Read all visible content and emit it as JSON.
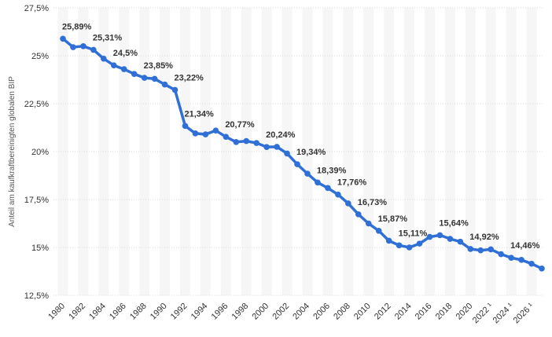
{
  "chart_data": {
    "type": "line",
    "title": "",
    "xlabel": "",
    "ylabel": "Anteil am kaufkraftbereinigten globalen BIP",
    "ylim": [
      12.5,
      27.5
    ],
    "y_ticks": [
      "12,5%",
      "15%",
      "17,5%",
      "20%",
      "22,5%",
      "25%",
      "27,5%"
    ],
    "y_tick_values": [
      12.5,
      15,
      17.5,
      20,
      22.5,
      25,
      27.5
    ],
    "x_tick_labels": [
      "1980",
      "1982",
      "1984",
      "1986",
      "1988",
      "1990",
      "1992",
      "1994",
      "1996",
      "1998",
      "2000",
      "2002",
      "2004",
      "2006",
      "2008",
      "2010",
      "2012",
      "2014",
      "2016",
      "2018",
      "2020",
      "2022 ¹",
      "2024 ¹",
      "2026 ¹"
    ],
    "x": [
      1980,
      1981,
      1982,
      1983,
      1984,
      1985,
      1986,
      1987,
      1988,
      1989,
      1990,
      1991,
      1992,
      1993,
      1994,
      1995,
      1996,
      1997,
      1998,
      1999,
      2000,
      2001,
      2002,
      2003,
      2004,
      2005,
      2006,
      2007,
      2008,
      2009,
      2010,
      2011,
      2012,
      2013,
      2014,
      2015,
      2016,
      2017,
      2018,
      2019,
      2020,
      2021,
      2022,
      2023,
      2024,
      2025,
      2026,
      2027
    ],
    "values": [
      25.89,
      25.45,
      25.5,
      25.31,
      24.85,
      24.5,
      24.3,
      24.05,
      23.85,
      23.8,
      23.5,
      23.22,
      21.34,
      20.95,
      20.9,
      21.1,
      20.77,
      20.5,
      20.55,
      20.45,
      20.24,
      20.25,
      19.9,
      19.34,
      18.85,
      18.39,
      18.1,
      17.76,
      17.3,
      16.73,
      16.25,
      15.87,
      15.35,
      15.11,
      15.0,
      15.2,
      15.55,
      15.64,
      15.45,
      15.3,
      14.92,
      14.85,
      14.9,
      14.65,
      14.46,
      14.35,
      14.15,
      13.9
    ],
    "data_labels": [
      {
        "x": 1980,
        "text": "25,89%"
      },
      {
        "x": 1983,
        "text": "25,31%"
      },
      {
        "x": 1985,
        "text": "24,5%"
      },
      {
        "x": 1988,
        "text": "23,85%"
      },
      {
        "x": 1991,
        "text": "23,22%"
      },
      {
        "x": 1992,
        "text": "21,34%"
      },
      {
        "x": 1996,
        "text": "20,77%"
      },
      {
        "x": 2000,
        "text": "20,24%"
      },
      {
        "x": 2003,
        "text": "19,34%"
      },
      {
        "x": 2005,
        "text": "18,39%"
      },
      {
        "x": 2007,
        "text": "17,76%"
      },
      {
        "x": 2009,
        "text": "16,73%"
      },
      {
        "x": 2011,
        "text": "15,87%"
      },
      {
        "x": 2013,
        "text": "15,11%"
      },
      {
        "x": 2017,
        "text": "15,64%"
      },
      {
        "x": 2020,
        "text": "14,92%"
      },
      {
        "x": 2024,
        "text": "14,46%"
      }
    ],
    "colors": {
      "line": "#2f6fd6",
      "band": "#f6f6f6",
      "grid": "#d9d9d9"
    },
    "grid": true,
    "legend": "none"
  }
}
